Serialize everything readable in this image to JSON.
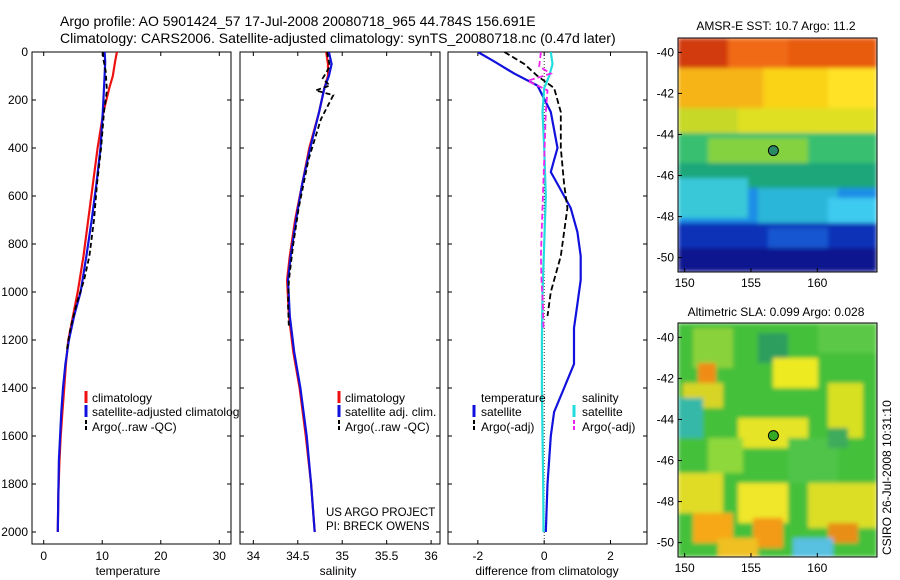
{
  "header": {
    "line1": "Argo profile: AO 5901424_57 17-Jul-2008 20080718_965 44.784S 156.691E",
    "line2": "Climatology: CARS2006. Satellite-adjusted climatology: synTS_20080718.nc (0.47d later)"
  },
  "credits": {
    "project": "US ARGO PROJECT",
    "pi": "PI: BRECK OWENS",
    "stamp": "CSIRO 26-Jul-2008 10:31:10"
  },
  "colors": {
    "climatology": "#ee1111",
    "satellite": "#1111dd",
    "argo": "#000000",
    "cyan": "#22dddd",
    "magenta": "#ee22ee",
    "marker_sst": "#2a8a66",
    "marker_sla": "#33aa22"
  },
  "chart_data": [
    {
      "type": "line",
      "title": "",
      "xlabel": "temperature",
      "ylabel": "",
      "xlim": [
        -2,
        32
      ],
      "ylim": [
        2050,
        0
      ],
      "xticks": [
        0,
        10,
        20,
        30
      ],
      "yticks": [
        0,
        200,
        400,
        600,
        800,
        1000,
        1200,
        1400,
        1600,
        1800,
        2000
      ],
      "series": [
        {
          "name": "climatology",
          "color": "#ee1111",
          "dash": "",
          "x": [
            12.5,
            12.2,
            11.8,
            11.2,
            10.2,
            9.2,
            8.4,
            7.6,
            6.8,
            5.8,
            5.0,
            4.2,
            3.8,
            3.5,
            3.2,
            2.9,
            2.7,
            2.5,
            2.4
          ],
          "y": [
            0,
            40,
            100,
            150,
            250,
            400,
            550,
            700,
            850,
            1000,
            1100,
            1200,
            1300,
            1400,
            1500,
            1600,
            1700,
            1850,
            2000
          ]
        },
        {
          "name": "satellite-adjusted climatology",
          "color": "#1111dd",
          "dash": "",
          "x": [
            10.4,
            10.5,
            10.4,
            10.3,
            10.1,
            9.7,
            9.0,
            8.2,
            7.3,
            6.3,
            5.2,
            4.3,
            3.7,
            3.3,
            3.0,
            2.8,
            2.6,
            2.5,
            2.4
          ],
          "y": [
            0,
            40,
            100,
            150,
            250,
            400,
            550,
            700,
            850,
            1000,
            1100,
            1200,
            1300,
            1400,
            1500,
            1600,
            1700,
            1850,
            2000
          ]
        },
        {
          "name": "Argo(..raw -QC)",
          "color": "#000000",
          "dash": "5,3",
          "x": [
            10.1,
            10.2,
            10.6,
            10.8,
            10.3,
            9.8,
            9.1,
            8.6,
            7.8,
            6.9,
            5.6,
            4.6,
            3.9
          ],
          "y": [
            0,
            30,
            80,
            160,
            250,
            400,
            550,
            700,
            850,
            950,
            1050,
            1150,
            1250
          ]
        }
      ]
    },
    {
      "type": "line",
      "title": "",
      "xlabel": "salinity",
      "ylabel": "",
      "xlim": [
        33.85,
        36.1
      ],
      "ylim": [
        2050,
        0
      ],
      "xticks": [
        34,
        34.5,
        35,
        35.5,
        36
      ],
      "series": [
        {
          "name": "climatology",
          "color": "#ee1111",
          "dash": "",
          "x": [
            34.82,
            34.84,
            34.84,
            34.8,
            34.74,
            34.63,
            34.55,
            34.47,
            34.41,
            34.38,
            34.4,
            34.45,
            34.52,
            34.59,
            34.65,
            34.69
          ],
          "y": [
            0,
            50,
            100,
            150,
            250,
            400,
            550,
            700,
            850,
            950,
            1100,
            1250,
            1400,
            1600,
            1800,
            2000
          ]
        },
        {
          "name": "satellite adj. clim.",
          "color": "#1111dd",
          "dash": "",
          "x": [
            34.85,
            34.88,
            34.85,
            34.8,
            34.74,
            34.64,
            34.55,
            34.48,
            34.42,
            34.39,
            34.41,
            34.46,
            34.53,
            34.6,
            34.65,
            34.69
          ],
          "y": [
            0,
            50,
            100,
            150,
            250,
            400,
            550,
            700,
            850,
            950,
            1100,
            1250,
            1400,
            1600,
            1800,
            2000
          ]
        },
        {
          "name": "Argo(..raw -QC)",
          "color": "#000000",
          "dash": "5,3",
          "x": [
            34.83,
            34.86,
            34.78,
            34.86,
            34.7,
            34.9,
            34.76,
            34.62,
            34.51,
            34.45,
            34.4,
            34.39,
            34.4
          ],
          "y": [
            0,
            60,
            110,
            140,
            160,
            180,
            280,
            450,
            650,
            800,
            950,
            1050,
            1150
          ]
        }
      ]
    },
    {
      "type": "line",
      "title": "",
      "xlabel": "difference from climatology",
      "ylabel": "",
      "xlim": [
        -2.9,
        3.1
      ],
      "ylim": [
        2050,
        0
      ],
      "xticks": [
        -2,
        0,
        2
      ],
      "legend_groups": [
        "temperature",
        "salinity"
      ],
      "series": [
        {
          "name": "satellite",
          "group": "temperature",
          "color": "#1111dd",
          "dash": "",
          "x": [
            -2.0,
            -1.5,
            -0.9,
            -0.2,
            0.2,
            0.4,
            0.3,
            0.2,
            0.4,
            0.8,
            1.0,
            1.1,
            1.1,
            1.0,
            0.9,
            0.9,
            0.9,
            0.6,
            0.3,
            0.2,
            0.1,
            0.05
          ],
          "y": [
            0,
            40,
            90,
            140,
            250,
            400,
            450,
            500,
            550,
            650,
            750,
            850,
            950,
            1050,
            1150,
            1250,
            1300,
            1400,
            1500,
            1600,
            1800,
            2000
          ]
        },
        {
          "name": "Argo(-adj)",
          "group": "temperature",
          "color": "#000000",
          "dash": "6,3",
          "x": [
            -1.2,
            -0.6,
            -0.2,
            0.3,
            0.5,
            0.5,
            0.6,
            0.7,
            0.6,
            0.5,
            0.2,
            0.1
          ],
          "y": [
            0,
            50,
            100,
            150,
            250,
            400,
            550,
            650,
            750,
            850,
            1000,
            1100
          ]
        },
        {
          "name": "satellite",
          "group": "salinity",
          "color": "#22dddd",
          "dash": "",
          "x": [
            0.2,
            0.25,
            0.15,
            0.0,
            -0.05,
            0.0,
            0.05,
            0.0,
            -0.05,
            -0.07,
            -0.07,
            -0.05,
            -0.03,
            -0.02
          ],
          "y": [
            0,
            50,
            100,
            150,
            250,
            400,
            600,
            800,
            1000,
            1200,
            1400,
            1600,
            1800,
            2000
          ]
        },
        {
          "name": "Argo(-adj)",
          "group": "salinity",
          "color": "#ee22ee",
          "dash": "6,3",
          "x": [
            -0.1,
            -0.15,
            0.2,
            -0.5,
            0.1,
            0.05,
            0.0,
            -0.05,
            -0.1,
            -0.08,
            -0.04,
            -0.02
          ],
          "y": [
            0,
            60,
            90,
            120,
            160,
            250,
            450,
            650,
            850,
            950,
            1050,
            1150
          ]
        }
      ]
    },
    {
      "type": "heatmap",
      "title": "AMSR-E SST: 10.7 Argo: 11.2",
      "xlim": [
        149.5,
        164.5
      ],
      "ylim": [
        -50.7,
        -39.3
      ],
      "xticks": [
        150,
        155,
        160
      ],
      "yticks": [
        -40,
        -42,
        -44,
        -46,
        -48,
        -50
      ],
      "marker": {
        "lon": 156.691,
        "lat": -44.784
      }
    },
    {
      "type": "heatmap",
      "title": "Altimetric SLA: 0.099 Argo: 0.028",
      "xlim": [
        149.5,
        164.5
      ],
      "ylim": [
        -50.7,
        -39.3
      ],
      "xticks": [
        150,
        155,
        160
      ],
      "yticks": [
        -40,
        -42,
        -44,
        -46,
        -48,
        -50
      ],
      "marker": {
        "lon": 156.691,
        "lat": -44.784
      }
    }
  ],
  "legends": {
    "temperature": [
      "climatology",
      "satellite-adjusted climatology",
      "Argo(..raw -QC)"
    ],
    "salinity": [
      "climatology",
      "satellite adj. clim.",
      "Argo(..raw -QC)"
    ],
    "difference": {
      "headers": [
        "temperature",
        "salinity"
      ],
      "temperature": [
        "satellite",
        "Argo(-adj)"
      ],
      "salinity": [
        "satellite",
        "Argo(-adj)"
      ]
    }
  }
}
